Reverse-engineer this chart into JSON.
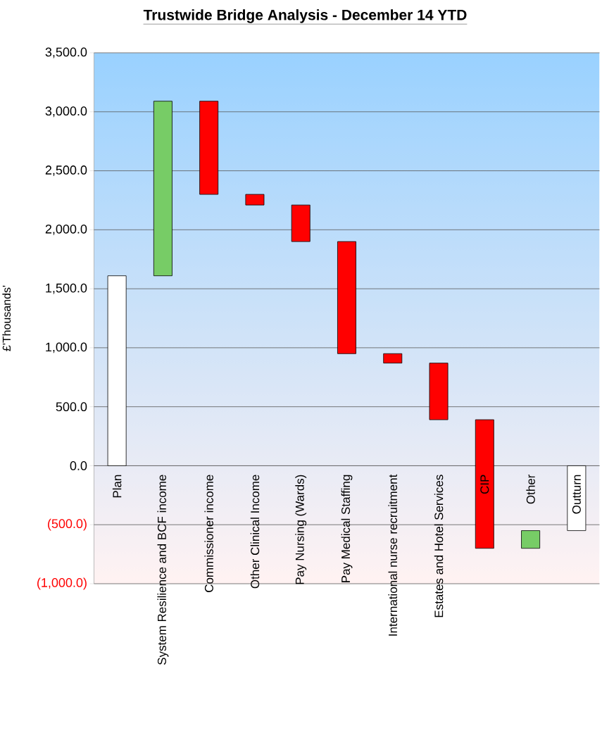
{
  "chart_data": {
    "type": "bar",
    "title": "Trustwide Bridge Analysis  - December 14 YTD",
    "ylabel": "£'Thousands'",
    "categories": [
      "Plan",
      "System Resilience and BCF income",
      "Commissioner income",
      "Other Clinical Income",
      "Pay Nursing (Wards)",
      "Pay Medical Staffing",
      "International nurse recruitment",
      "Estates and Hotel Services",
      "CIP",
      "Other",
      "Outturn"
    ],
    "base": [
      0,
      1610,
      3090,
      2300,
      2210,
      1900,
      950,
      870,
      390,
      -700,
      0
    ],
    "values": [
      1610,
      1480,
      -790,
      -90,
      -310,
      -950,
      -80,
      -480,
      -1090,
      150,
      -550
    ],
    "colors": [
      "#ffffff",
      "#77cc66",
      "#ff0000",
      "#ff0000",
      "#ff0000",
      "#ff0000",
      "#ff0000",
      "#ff0000",
      "#ff0000",
      "#77cc66",
      "#ffffff"
    ],
    "ylim": [
      -1000,
      3500
    ],
    "yticks": [
      {
        "value": -1000,
        "label": "(1,000.0)"
      },
      {
        "value": -500,
        "label": "(500.0)"
      },
      {
        "value": 0,
        "label": "0.0"
      },
      {
        "value": 500,
        "label": "500.0"
      },
      {
        "value": 1000,
        "label": "1,000.0"
      },
      {
        "value": 1500,
        "label": "1,500.0"
      },
      {
        "value": 2000,
        "label": "2,000.0"
      },
      {
        "value": 2500,
        "label": "2,500.0"
      },
      {
        "value": 3000,
        "label": "3,000.0"
      },
      {
        "value": 3500,
        "label": "3,500.0"
      }
    ],
    "grid": "y"
  }
}
